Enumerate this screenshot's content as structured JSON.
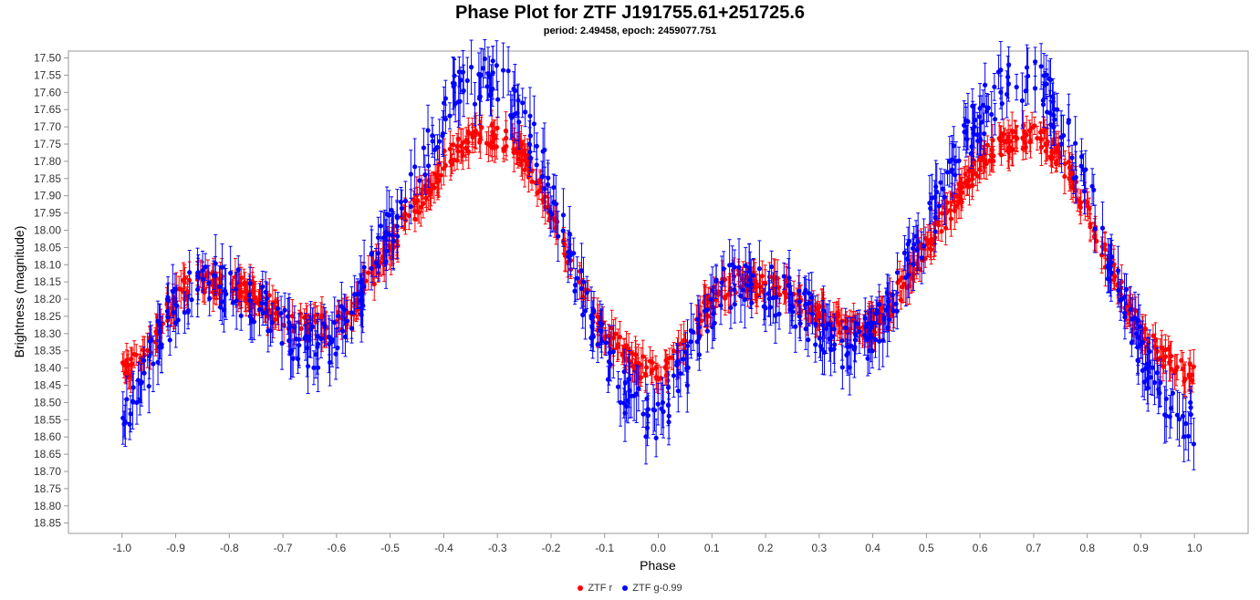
{
  "chart_data": {
    "type": "scatter",
    "title": "Phase Plot for ZTF J191755.61+251725.6",
    "subtitle": "period: 2.49458, epoch: 2459077.751",
    "xlabel": "Phase",
    "ylabel": "Brightness (magnitude)",
    "xlim": [
      -1.1,
      1.1
    ],
    "ylim": [
      17.48,
      18.88
    ],
    "y_inverted": true,
    "grid": false,
    "legend_position": "bottom",
    "x_ticks": [
      "-1.0",
      "-0.9",
      "-0.8",
      "-0.7",
      "-0.6",
      "-0.5",
      "-0.4",
      "-0.3",
      "-0.2",
      "-0.1",
      "0.0",
      "0.1",
      "0.2",
      "0.3",
      "0.4",
      "0.5",
      "0.6",
      "0.7",
      "0.8",
      "0.9",
      "1.0"
    ],
    "y_ticks": [
      "17.50",
      "17.55",
      "17.60",
      "17.65",
      "17.70",
      "17.75",
      "17.80",
      "17.85",
      "17.90",
      "17.95",
      "18.00",
      "18.05",
      "18.10",
      "18.15",
      "18.20",
      "18.25",
      "18.30",
      "18.35",
      "18.40",
      "18.45",
      "18.50",
      "18.55",
      "18.60",
      "18.65",
      "18.70",
      "18.75",
      "18.80",
      "18.85"
    ],
    "series": [
      {
        "name": "ZTF r",
        "color": "#ff0000",
        "phase": [
          0.0,
          0.02,
          0.04,
          0.06,
          0.08,
          0.1,
          0.12,
          0.14,
          0.16,
          0.18,
          0.2,
          0.22,
          0.24,
          0.26,
          0.28,
          0.3,
          0.32,
          0.34,
          0.36,
          0.38,
          0.4,
          0.42,
          0.44,
          0.46,
          0.48,
          0.5,
          0.52,
          0.54,
          0.56,
          0.58,
          0.6,
          0.62,
          0.64,
          0.66,
          0.68,
          0.7,
          0.72,
          0.74,
          0.76,
          0.78,
          0.8,
          0.82,
          0.84,
          0.86,
          0.88,
          0.9,
          0.92,
          0.94,
          0.96,
          0.98,
          1.0
        ],
        "mag": [
          18.42,
          18.4,
          18.36,
          18.3,
          18.24,
          18.2,
          18.17,
          18.15,
          18.15,
          18.16,
          18.17,
          18.17,
          18.18,
          18.2,
          18.23,
          18.25,
          18.26,
          18.27,
          18.28,
          18.28,
          18.27,
          18.24,
          18.2,
          18.15,
          18.1,
          18.05,
          18.0,
          17.95,
          17.9,
          17.85,
          17.8,
          17.77,
          17.75,
          17.74,
          17.73,
          17.73,
          17.74,
          17.77,
          17.82,
          17.88,
          17.95,
          18.02,
          18.1,
          18.17,
          18.24,
          18.29,
          18.33,
          18.36,
          18.39,
          18.41,
          18.42
        ],
        "error": 0.04
      },
      {
        "name": "ZTF g-0.99",
        "color": "#0000ff",
        "phase": [
          0.0,
          0.02,
          0.04,
          0.06,
          0.08,
          0.1,
          0.12,
          0.14,
          0.16,
          0.18,
          0.2,
          0.22,
          0.24,
          0.26,
          0.28,
          0.3,
          0.32,
          0.34,
          0.36,
          0.38,
          0.4,
          0.42,
          0.44,
          0.46,
          0.48,
          0.5,
          0.52,
          0.54,
          0.56,
          0.58,
          0.6,
          0.62,
          0.64,
          0.66,
          0.68,
          0.7,
          0.72,
          0.74,
          0.76,
          0.78,
          0.8,
          0.82,
          0.84,
          0.86,
          0.88,
          0.9,
          0.92,
          0.94,
          0.96,
          0.98,
          1.0
        ],
        "mag": [
          18.55,
          18.5,
          18.43,
          18.36,
          18.28,
          18.22,
          18.18,
          18.16,
          18.15,
          18.16,
          18.17,
          18.18,
          18.2,
          18.22,
          18.25,
          18.28,
          18.31,
          18.33,
          18.34,
          18.33,
          18.3,
          18.26,
          18.2,
          18.13,
          18.06,
          18.0,
          17.93,
          17.86,
          17.79,
          17.72,
          17.67,
          17.62,
          17.59,
          17.57,
          17.56,
          17.57,
          17.6,
          17.65,
          17.72,
          17.8,
          17.89,
          17.99,
          18.09,
          18.18,
          18.27,
          18.35,
          18.42,
          18.48,
          18.52,
          18.55,
          18.56
        ],
        "error": 0.06
      }
    ]
  }
}
